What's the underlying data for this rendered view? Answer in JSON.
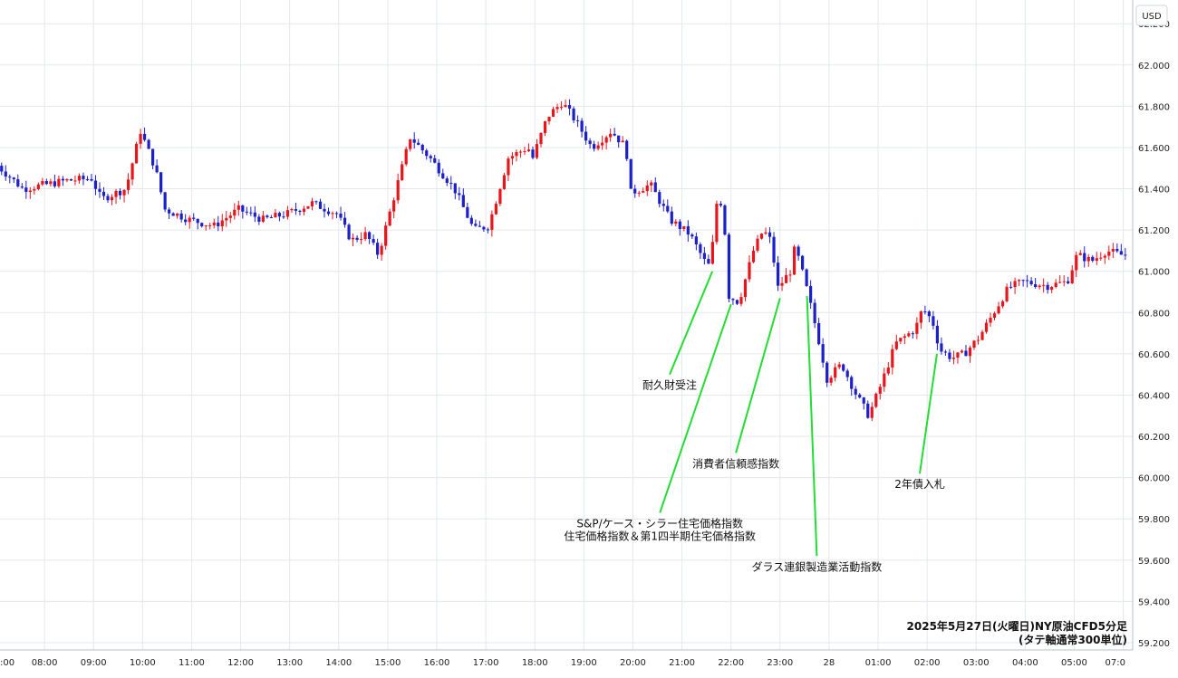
{
  "currency_badge": "USD",
  "caption_lines": [
    "2025年5月27日(火曜日)NY原油CFD5分足",
    "(タテ軸通常300単位)"
  ],
  "chart_data": {
    "type": "candlestick",
    "ylim": [
      59.2,
      62.35
    ],
    "y_ticks": [
      "59.200",
      "59.400",
      "59.600",
      "59.800",
      "60.000",
      "60.200",
      "60.400",
      "60.600",
      "60.800",
      "61.000",
      "61.200",
      "61.400",
      "61.600",
      "61.800",
      "62.000",
      "62.200"
    ],
    "x_ticks": [
      ":00",
      "08:00",
      "09:00",
      "10:00",
      "11:00",
      "12:00",
      "13:00",
      "14:00",
      "15:00",
      "16:00",
      "17:00",
      "18:00",
      "19:00",
      "20:00",
      "21:00",
      "22:00",
      "23:00",
      "28",
      "01:00",
      "02:00",
      "03:00",
      "04:00",
      "05:00",
      "07:0"
    ],
    "x_tick_hours": [
      7,
      8,
      9,
      10,
      11,
      12,
      13,
      14,
      15,
      16,
      17,
      18,
      19,
      20,
      21,
      22,
      23,
      24,
      25,
      26,
      27,
      28,
      29,
      30
    ],
    "x_range_hours": [
      7,
      30.1
    ],
    "key_prices": [
      {
        "h": 7.0,
        "p": 61.53
      },
      {
        "h": 7.6,
        "p": 61.4
      },
      {
        "h": 8.5,
        "p": 61.44
      },
      {
        "h": 9.0,
        "p": 61.45
      },
      {
        "h": 9.2,
        "p": 61.35
      },
      {
        "h": 9.7,
        "p": 61.4
      },
      {
        "h": 10.0,
        "p": 61.68
      },
      {
        "h": 10.3,
        "p": 61.5
      },
      {
        "h": 10.5,
        "p": 61.3
      },
      {
        "h": 11.0,
        "p": 61.25
      },
      {
        "h": 11.5,
        "p": 61.22
      },
      {
        "h": 12.0,
        "p": 61.3
      },
      {
        "h": 12.5,
        "p": 61.25
      },
      {
        "h": 13.0,
        "p": 61.28
      },
      {
        "h": 13.5,
        "p": 61.33
      },
      {
        "h": 14.0,
        "p": 61.28
      },
      {
        "h": 14.3,
        "p": 61.15
      },
      {
        "h": 14.6,
        "p": 61.18
      },
      {
        "h": 14.85,
        "p": 61.08
      },
      {
        "h": 15.1,
        "p": 61.3
      },
      {
        "h": 15.5,
        "p": 61.65
      },
      {
        "h": 15.9,
        "p": 61.55
      },
      {
        "h": 16.4,
        "p": 61.4
      },
      {
        "h": 16.8,
        "p": 61.2
      },
      {
        "h": 17.1,
        "p": 61.22
      },
      {
        "h": 17.5,
        "p": 61.55
      },
      {
        "h": 17.9,
        "p": 61.6
      },
      {
        "h": 18.0,
        "p": 61.55
      },
      {
        "h": 18.3,
        "p": 61.75
      },
      {
        "h": 18.6,
        "p": 61.82
      },
      {
        "h": 18.9,
        "p": 61.72
      },
      {
        "h": 19.2,
        "p": 61.6
      },
      {
        "h": 19.6,
        "p": 61.68
      },
      {
        "h": 19.9,
        "p": 61.6
      },
      {
        "h": 20.0,
        "p": 61.38
      },
      {
        "h": 20.4,
        "p": 61.42
      },
      {
        "h": 20.8,
        "p": 61.25
      },
      {
        "h": 21.2,
        "p": 61.18
      },
      {
        "h": 21.5,
        "p": 61.05
      },
      {
        "h": 21.62,
        "p": 61.02
      },
      {
        "h": 21.78,
        "p": 61.4
      },
      {
        "h": 21.9,
        "p": 61.25
      },
      {
        "h": 22.0,
        "p": 60.88
      },
      {
        "h": 22.2,
        "p": 60.85
      },
      {
        "h": 22.5,
        "p": 61.1
      },
      {
        "h": 22.7,
        "p": 61.2
      },
      {
        "h": 22.85,
        "p": 61.15
      },
      {
        "h": 23.0,
        "p": 60.92
      },
      {
        "h": 23.25,
        "p": 61.0
      },
      {
        "h": 23.35,
        "p": 61.12
      },
      {
        "h": 23.55,
        "p": 60.95
      },
      {
        "h": 23.8,
        "p": 60.7
      },
      {
        "h": 24.0,
        "p": 60.48
      },
      {
        "h": 24.3,
        "p": 60.55
      },
      {
        "h": 24.6,
        "p": 60.4
      },
      {
        "h": 24.85,
        "p": 60.3
      },
      {
        "h": 25.1,
        "p": 60.45
      },
      {
        "h": 25.4,
        "p": 60.65
      },
      {
        "h": 25.8,
        "p": 60.72
      },
      {
        "h": 25.95,
        "p": 60.82
      },
      {
        "h": 26.15,
        "p": 60.76
      },
      {
        "h": 26.3,
        "p": 60.62
      },
      {
        "h": 26.55,
        "p": 60.58
      },
      {
        "h": 26.8,
        "p": 60.6
      },
      {
        "h": 27.1,
        "p": 60.68
      },
      {
        "h": 27.4,
        "p": 60.8
      },
      {
        "h": 27.7,
        "p": 60.92
      },
      {
        "h": 28.0,
        "p": 60.95
      },
      {
        "h": 28.5,
        "p": 60.93
      },
      {
        "h": 28.9,
        "p": 60.95
      },
      {
        "h": 29.1,
        "p": 61.08
      },
      {
        "h": 29.4,
        "p": 61.05
      },
      {
        "h": 29.7,
        "p": 61.1
      },
      {
        "h": 30.0,
        "p": 61.08
      }
    ],
    "up_color": "#e8151b",
    "down_color": "#1c20c8",
    "annotation_color": "#22dd33"
  },
  "annotations": [
    {
      "id": "durable",
      "label_lines": [
        "耐久財受注"
      ],
      "point": {
        "h": 21.62,
        "p": 61.0
      },
      "anchor": {
        "h": 20.75,
        "p": 60.5
      }
    },
    {
      "id": "sp",
      "label_lines": [
        "S&P/ケース・シラー住宅価格指数",
        "住宅価格指数＆第1四半期住宅価格指数"
      ],
      "point": {
        "h": 22.0,
        "p": 60.84
      },
      "anchor": {
        "h": 20.55,
        "p": 59.83
      }
    },
    {
      "id": "consumer",
      "label_lines": [
        "消費者信頼感指数"
      ],
      "point": {
        "h": 23.0,
        "p": 60.87
      },
      "anchor": {
        "h": 22.1,
        "p": 60.12
      }
    },
    {
      "id": "dallas",
      "label_lines": [
        "ダラス連銀製造業活動指数"
      ],
      "point": {
        "h": 23.55,
        "p": 60.88
      },
      "anchor": {
        "h": 23.75,
        "p": 59.62
      }
    },
    {
      "id": "auction",
      "label_lines": [
        "2年債入札"
      ],
      "point": {
        "h": 26.2,
        "p": 60.6
      },
      "anchor": {
        "h": 25.85,
        "p": 60.02
      }
    }
  ]
}
